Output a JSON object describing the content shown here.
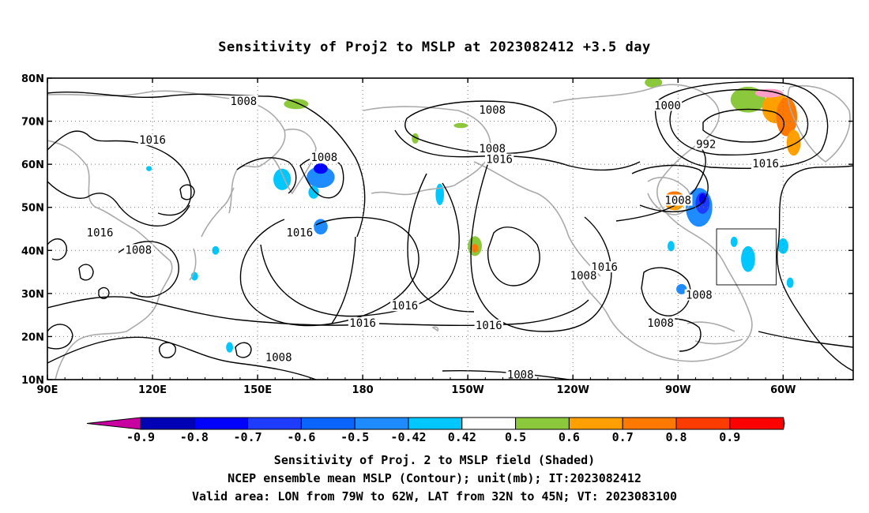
{
  "title": "Sensitivity of Proj2 to MSLP at 2023082412 +3.5 day",
  "lat_labels": [
    "80N",
    "70N",
    "60N",
    "50N",
    "40N",
    "30N",
    "20N",
    "10N"
  ],
  "lon_labels": [
    "90E",
    "120E",
    "150E",
    "180",
    "150W",
    "120W",
    "90W",
    "60W"
  ],
  "contour_labels": [
    {
      "text": "1008",
      "lon": 146,
      "lat": 74.5
    },
    {
      "text": "1008",
      "lon": 217,
      "lat": 72.5
    },
    {
      "text": "1000",
      "lon": 267,
      "lat": 73.5
    },
    {
      "text": "992",
      "lon": 278,
      "lat": 64.5
    },
    {
      "text": "1016",
      "lon": 120,
      "lat": 65.5
    },
    {
      "text": "1008",
      "lon": 217,
      "lat": 63.5
    },
    {
      "text": "1008",
      "lon": 169,
      "lat": 61.5
    },
    {
      "text": "1016",
      "lon": 219,
      "lat": 61
    },
    {
      "text": "1016",
      "lon": 295,
      "lat": 60
    },
    {
      "text": "1008",
      "lon": 270,
      "lat": 51.5
    },
    {
      "text": "1016",
      "lon": 105,
      "lat": 44
    },
    {
      "text": "1016",
      "lon": 162,
      "lat": 44
    },
    {
      "text": "1008",
      "lon": 116,
      "lat": 40
    },
    {
      "text": "1016",
      "lon": 249,
      "lat": 36
    },
    {
      "text": "1008",
      "lon": 243,
      "lat": 34
    },
    {
      "text": "1008",
      "lon": 276,
      "lat": 29.5
    },
    {
      "text": "1016",
      "lon": 192,
      "lat": 27
    },
    {
      "text": "1008",
      "lon": 265,
      "lat": 23
    },
    {
      "text": "1016",
      "lon": 180,
      "lat": 23
    },
    {
      "text": "1016",
      "lon": 216,
      "lat": 22.5
    },
    {
      "text": "1008",
      "lon": 156,
      "lat": 15
    },
    {
      "text": "1008",
      "lon": 225,
      "lat": 11
    }
  ],
  "colorbar": {
    "labels": [
      "-0.9",
      "-0.8",
      "-0.7",
      "-0.6",
      "-0.5",
      "-0.42",
      "0.42",
      "0.5",
      "0.6",
      "0.7",
      "0.8",
      "0.9"
    ],
    "colors": [
      "#0000b4",
      "#0000ff",
      "#1e3cff",
      "#0a64ff",
      "#1e8cff",
      "#00c8ff",
      "#ffffff",
      "#8cc83c",
      "#ffa000",
      "#ff7800",
      "#ff3c00",
      "#ff0000"
    ],
    "under_color": "#c800a0",
    "over_color": "#ff9ec8"
  },
  "sensitivity_blobs": [
    {
      "lon": 157,
      "lat": 56.5,
      "rx": 2.5,
      "ry": 2.5,
      "value": -0.45
    },
    {
      "lon": 168,
      "lat": 57,
      "rx": 4,
      "ry": 2.5,
      "value": -0.55
    },
    {
      "lon": 168,
      "lat": 59,
      "rx": 2,
      "ry": 1.2,
      "value": -0.7
    },
    {
      "lon": 166,
      "lat": 53.5,
      "rx": 1.5,
      "ry": 1.5,
      "value": -0.45
    },
    {
      "lon": 168,
      "lat": 45.5,
      "rx": 2,
      "ry": 1.8,
      "value": -0.5
    },
    {
      "lon": 202,
      "lat": 53,
      "rx": 1.2,
      "ry": 2.5,
      "value": -0.45
    },
    {
      "lon": 132,
      "lat": 34,
      "rx": 1,
      "ry": 1,
      "value": -0.45
    },
    {
      "lon": 142,
      "lat": 17.5,
      "rx": 1,
      "ry": 1.2,
      "value": -0.45
    },
    {
      "lon": 119,
      "lat": 59,
      "rx": 0.8,
      "ry": 0.6,
      "value": -0.45
    },
    {
      "lon": 276,
      "lat": 50,
      "rx": 3.8,
      "ry": 4.5,
      "value": -0.5
    },
    {
      "lon": 277,
      "lat": 51,
      "rx": 2,
      "ry": 2.5,
      "value": -0.6
    },
    {
      "lon": 277,
      "lat": 52,
      "rx": 1,
      "ry": 1.2,
      "value": -0.7
    },
    {
      "lon": 271,
      "lat": 31,
      "rx": 1.5,
      "ry": 1.2,
      "value": -0.5
    },
    {
      "lon": 268,
      "lat": 41,
      "rx": 1,
      "ry": 1.2,
      "value": -0.45
    },
    {
      "lon": 290,
      "lat": 38,
      "rx": 2,
      "ry": 3,
      "value": -0.45
    },
    {
      "lon": 300,
      "lat": 41,
      "rx": 1.5,
      "ry": 1.8,
      "value": -0.45
    },
    {
      "lon": 302,
      "lat": 32.5,
      "rx": 1,
      "ry": 1.2,
      "value": -0.45
    },
    {
      "lon": 286,
      "lat": 42,
      "rx": 1,
      "ry": 1.2,
      "value": -0.45
    },
    {
      "lon": 138,
      "lat": 40,
      "rx": 1,
      "ry": 1,
      "value": -0.45
    },
    {
      "lon": 161,
      "lat": 74,
      "rx": 3.5,
      "ry": 1.2,
      "value": 0.45
    },
    {
      "lon": 208,
      "lat": 69,
      "rx": 2,
      "ry": 0.6,
      "value": 0.45
    },
    {
      "lon": 195,
      "lat": 66,
      "rx": 1,
      "ry": 1.2,
      "value": 0.45
    },
    {
      "lon": 212,
      "lat": 41,
      "rx": 2,
      "ry": 2.3,
      "value": 0.45
    },
    {
      "lon": 212,
      "lat": 40.5,
      "rx": 1,
      "ry": 1,
      "value": 0.65
    },
    {
      "lon": 269,
      "lat": 51.5,
      "rx": 3,
      "ry": 2.2,
      "value": 0.55
    },
    {
      "lon": 269,
      "lat": 52.5,
      "rx": 2.5,
      "ry": 1.2,
      "value": 0.65
    },
    {
      "lon": 263,
      "lat": 79,
      "rx": 2.5,
      "ry": 1.2,
      "value": 0.45
    },
    {
      "lon": 290,
      "lat": 75,
      "rx": 5,
      "ry": 3,
      "value": 0.45
    },
    {
      "lon": 298,
      "lat": 73,
      "rx": 4,
      "ry": 3.5,
      "value": 0.55
    },
    {
      "lon": 301,
      "lat": 71,
      "rx": 3,
      "ry": 4.5,
      "value": 0.65
    },
    {
      "lon": 303,
      "lat": 65,
      "rx": 2,
      "ry": 3,
      "value": 0.55
    },
    {
      "lon": 296,
      "lat": 76.5,
      "rx": 4,
      "ry": 1,
      "value": 0.95
    }
  ],
  "valid_area": {
    "lon_min": -79,
    "lon_max": -62,
    "lat_min": 32,
    "lat_max": 45
  },
  "footer_lines": [
    "Sensitivity of Proj. 2 to MSLP field (Shaded)",
    "NCEP ensemble mean MSLP (Contour); unit(mb); IT:2023082412",
    "Valid area: LON from 79W to 62W, LAT from 32N to 45N; VT: 2023083100"
  ]
}
